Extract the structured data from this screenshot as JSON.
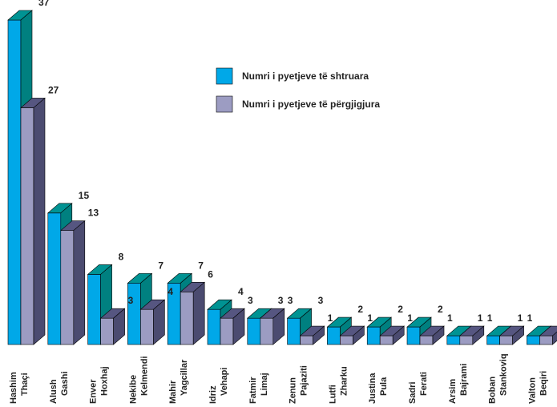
{
  "chart_data": {
    "type": "bar3d",
    "categories": [
      "Hashim Thaçi",
      "Alush Gashi",
      "Enver Hoxhaj",
      "Nekibe Kelmendi",
      "Mahir Yagcillar",
      "Idriz Vehapi",
      "Fatmir Limaj",
      "Zenun Pajaziti",
      "Lutfi Zharku",
      "Justina Pula",
      "Sadri Ferati",
      "Arsim Bajrami",
      "Boban Stankoviq",
      "Valton Beqiri"
    ],
    "series": [
      {
        "name": "Numri i pyetjeve të shtruara",
        "color": "#00a8e8",
        "side": "#008080",
        "values": [
          37,
          15,
          8,
          7,
          7,
          4,
          3,
          3,
          2,
          2,
          2,
          1,
          1,
          1
        ]
      },
      {
        "name": "Numri i pyetjeve të përgjigjura",
        "color": "#9c9cc2",
        "side": "#4b4b70",
        "values": [
          27,
          13,
          3,
          4,
          6,
          3,
          3,
          1,
          1,
          1,
          1,
          1,
          1,
          1
        ]
      }
    ],
    "legend": "upper right"
  }
}
